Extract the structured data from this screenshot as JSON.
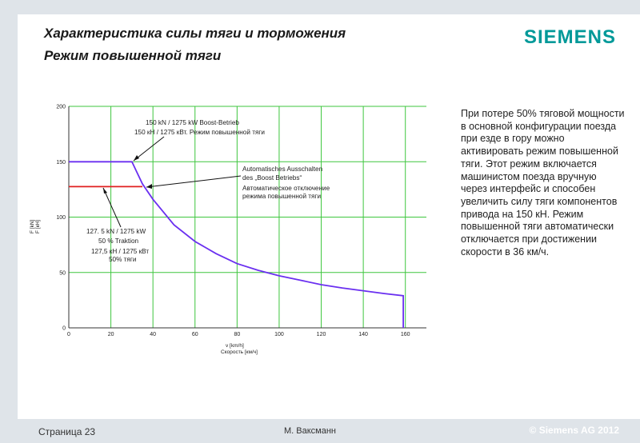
{
  "header": {
    "title": "Характеристика силы тяги и торможения",
    "subtitle": "Режим повышенной тяги",
    "logo": "SIEMENS"
  },
  "chart_data": {
    "type": "line",
    "xlabel": "v [km/h]",
    "xlabel_ru": "Скорость [км/ч]",
    "ylabel": "F [kN]",
    "ylabel_ru": "F [кН]",
    "xlim": [
      0,
      170
    ],
    "ylim": [
      0,
      200
    ],
    "x_ticks": [
      "0",
      "20",
      "40",
      "60",
      "80",
      "100",
      "120",
      "140",
      "160"
    ],
    "y_ticks": [
      "0",
      "50",
      "100",
      "150",
      "200"
    ],
    "grid": true,
    "series": [
      {
        "color": "#6a2ff0",
        "points": [
          [
            0,
            150
          ],
          [
            30,
            150
          ],
          [
            32,
            142
          ],
          [
            35,
            130
          ],
          [
            40,
            116
          ],
          [
            50,
            93
          ],
          [
            60,
            78
          ],
          [
            70,
            67
          ],
          [
            80,
            58
          ],
          [
            90,
            52
          ],
          [
            100,
            47
          ],
          [
            110,
            43
          ],
          [
            120,
            39
          ],
          [
            130,
            36
          ],
          [
            140,
            33.5
          ],
          [
            150,
            31
          ],
          [
            159,
            29
          ],
          [
            159,
            0
          ]
        ]
      },
      {
        "color": "#e02020",
        "points": [
          [
            0,
            127.5
          ],
          [
            35,
            127.5
          ]
        ]
      }
    ],
    "annotations": {
      "boost_de": "150  kN  / 1275 kW  Boost-Betrieb",
      "boost_ru": "150 кН / 1275 кВт. Режим повышенной тяги",
      "auto_de_1": "Automatisches Ausschalten",
      "auto_de_2": "des „Boost Betriebs“",
      "auto_ru_1": "Автоматическое отключение",
      "auto_ru_2": "режима повышенной тяги",
      "trak_de_1": "127. 5  kN  / 1275 kW",
      "trak_de_2": "50  %  Traktion",
      "trak_ru_1": "127,5 кН / 1275 кВт",
      "trak_ru_2": "50% тяги"
    }
  },
  "side_text": "При потере 50% тяговой мощности   в основной конфигурации поезда при езде в гору можно активировать режим повышенной тяги. Этот режим включается машинистом поезда вручную через интерфейс и способен увеличить силу тяги компонентов привода на 150 кН. Режим повышенной тяги автоматически отключается при достижении скорости в 36 км/ч.",
  "footer": {
    "page": "Страница 23",
    "author": "М. Ваксманн",
    "copyright": "© Siemens AG 2012"
  }
}
